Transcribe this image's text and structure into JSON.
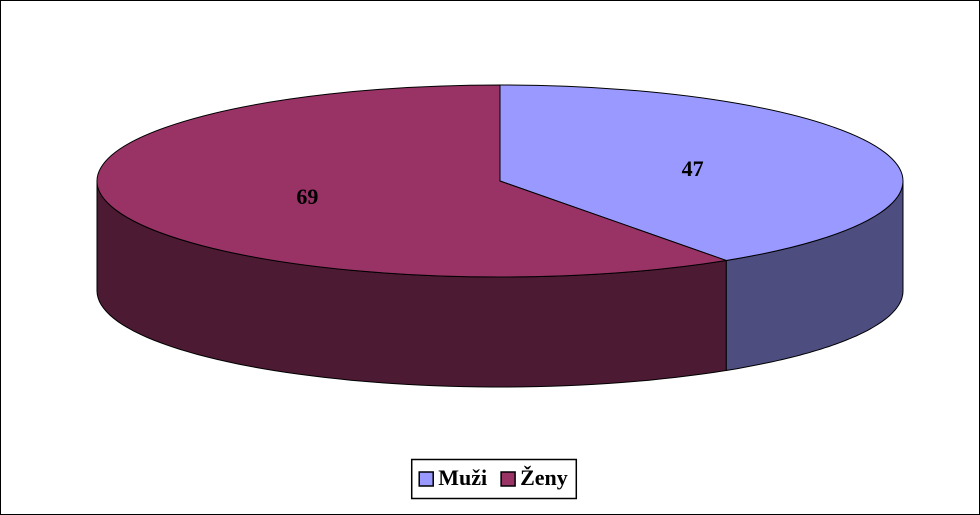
{
  "chart_data": {
    "type": "pie3d",
    "categories": [
      "Muži",
      "Ženy"
    ],
    "values": [
      47,
      69
    ],
    "colors": [
      "#9999ff",
      "#993366"
    ],
    "legend": "bottom"
  }
}
